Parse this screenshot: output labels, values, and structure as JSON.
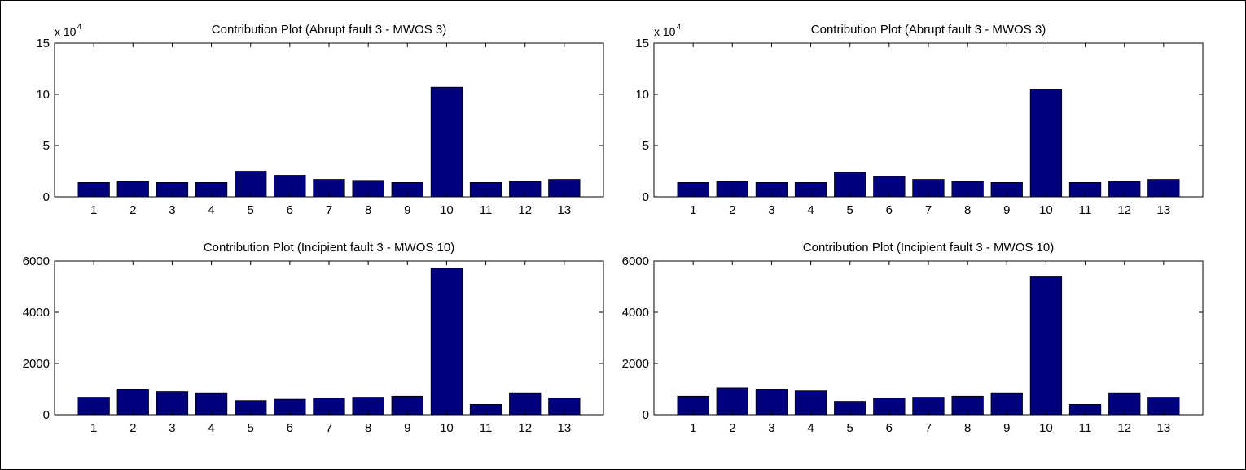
{
  "figure": {
    "background": "#ffffff",
    "bar_color": "#00007F",
    "edge_color": "#000000"
  },
  "chart_data": [
    {
      "type": "bar",
      "title": "Contribution Plot (Abrupt fault 3 - MWOS 3)",
      "categories": [
        "1",
        "2",
        "3",
        "4",
        "5",
        "6",
        "7",
        "8",
        "9",
        "10",
        "11",
        "12",
        "13"
      ],
      "values": [
        14000,
        15000,
        14000,
        14000,
        25000,
        21000,
        17000,
        16000,
        14000,
        107000,
        14000,
        15000,
        17000
      ],
      "ylim": [
        0,
        150000
      ],
      "yticks": [
        0,
        50000,
        100000,
        150000
      ],
      "ytick_labels": [
        "0",
        "5",
        "10",
        "15"
      ],
      "y_multiplier": {
        "base": "x 10",
        "exp": "4"
      },
      "xlabel": "",
      "ylabel": "",
      "grid": false,
      "legend": "none"
    },
    {
      "type": "bar",
      "title": "Contribution Plot (Abrupt fault 3 - MWOS 3)",
      "categories": [
        "1",
        "2",
        "3",
        "4",
        "5",
        "6",
        "7",
        "8",
        "9",
        "10",
        "11",
        "12",
        "13"
      ],
      "values": [
        14000,
        15000,
        14000,
        14000,
        24000,
        20000,
        17000,
        15000,
        14000,
        105000,
        14000,
        15000,
        17000
      ],
      "ylim": [
        0,
        150000
      ],
      "yticks": [
        0,
        50000,
        100000,
        150000
      ],
      "ytick_labels": [
        "0",
        "5",
        "10",
        "15"
      ],
      "y_multiplier": {
        "base": "x 10",
        "exp": "4"
      },
      "xlabel": "",
      "ylabel": "",
      "grid": false,
      "legend": "none"
    },
    {
      "type": "bar",
      "title": "Contribution Plot (Incipient fault 3 - MWOS 10)",
      "categories": [
        "1",
        "2",
        "3",
        "4",
        "5",
        "6",
        "7",
        "8",
        "9",
        "10",
        "11",
        "12",
        "13"
      ],
      "values": [
        680,
        970,
        900,
        850,
        550,
        600,
        650,
        680,
        720,
        5720,
        400,
        850,
        650
      ],
      "ylim": [
        0,
        6000
      ],
      "yticks": [
        0,
        2000,
        4000,
        6000
      ],
      "ytick_labels": [
        "0",
        "2000",
        "4000",
        "6000"
      ],
      "y_multiplier": null,
      "xlabel": "",
      "ylabel": "",
      "grid": false,
      "legend": "none"
    },
    {
      "type": "bar",
      "title": "Contribution Plot (Incipient fault 3 - MWOS 10)",
      "categories": [
        "1",
        "2",
        "3",
        "4",
        "5",
        "6",
        "7",
        "8",
        "9",
        "10",
        "11",
        "12",
        "13"
      ],
      "values": [
        720,
        1050,
        980,
        930,
        520,
        650,
        680,
        720,
        850,
        5380,
        400,
        850,
        680
      ],
      "ylim": [
        0,
        6000
      ],
      "yticks": [
        0,
        2000,
        4000,
        6000
      ],
      "ytick_labels": [
        "0",
        "2000",
        "4000",
        "6000"
      ],
      "y_multiplier": null,
      "xlabel": "",
      "ylabel": "",
      "grid": false,
      "legend": "none"
    }
  ]
}
